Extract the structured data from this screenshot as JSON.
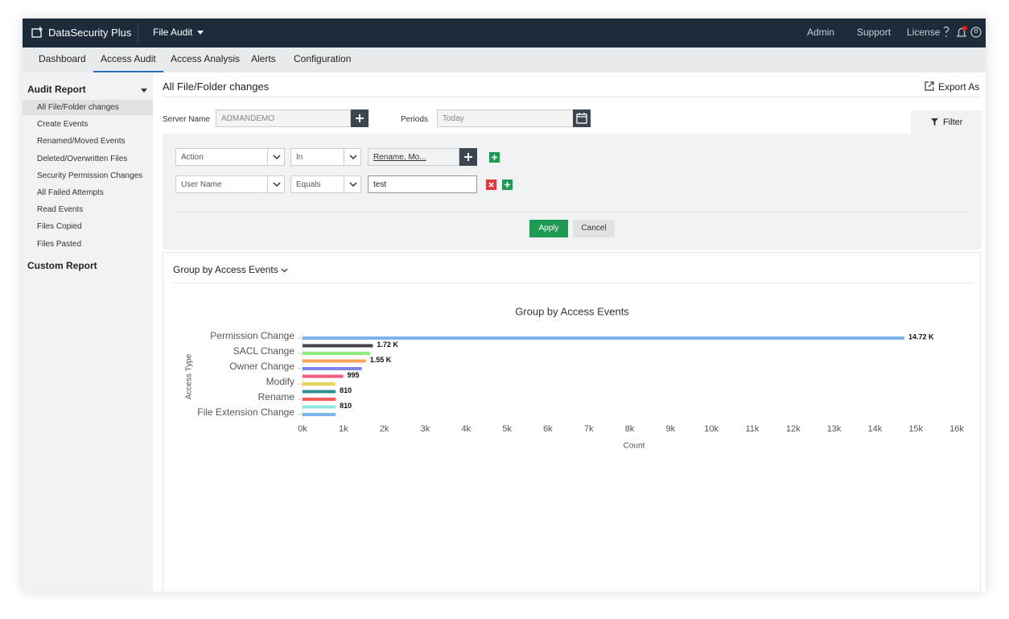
{
  "header": {
    "brand": "DataSecurity Plus",
    "module": "File Audit",
    "links": [
      "Admin",
      "Support",
      "License"
    ]
  },
  "tabs": [
    "Dashboard",
    "Access Audit",
    "Access Analysis",
    "Alerts",
    "Configuration"
  ],
  "sidebar": {
    "section": "Audit Report",
    "items": [
      "All File/Folder changes",
      "Create Events",
      "Renamed/Moved Events",
      "Deleted/Overwritten Files",
      "Security Permission Changes",
      "All Failed Attempts",
      "Read Events",
      "Files Copied",
      "Files Pasted"
    ],
    "custom": "Custom Report"
  },
  "page": {
    "title": "All File/Folder changes",
    "export": "Export As"
  },
  "form": {
    "server_label": "Server Name",
    "server": "ADMANDEMO",
    "periods_label": "Periods",
    "period": "Today",
    "filter": "Filter",
    "rows": [
      [
        "Action",
        "In",
        "Rename, Mo..."
      ],
      [
        "User Name",
        "Equals",
        "test"
      ]
    ],
    "apply": "Apply",
    "cancel": "Cancel"
  },
  "group_by": "Group by Access Events",
  "chart_data": {
    "type": "hbar",
    "title": "Group by Access Events",
    "x_label": "Count",
    "y_label": "Access Type",
    "categories": [
      "Permission Change",
      null,
      "SACL Change",
      null,
      "Owner Change",
      null,
      "Modify",
      null,
      "Rename",
      null,
      "File Extension Change"
    ],
    "values": [
      14720,
      1720,
      1650,
      1550,
      1450,
      995,
      800,
      810,
      810,
      810,
      810
    ],
    "value_labels": [
      "14.72 K",
      "1.72 K",
      null,
      "1.55 K",
      null,
      "995",
      null,
      "810",
      null,
      "810",
      null
    ],
    "colors": [
      "#7cb5ec",
      "#434348",
      "#90ed7d",
      "#f7a35c",
      "#8085e9",
      "#f15c80",
      "#e4d354",
      "#2b908f",
      "#f45b5b",
      "#91e8e1",
      "#7cb5ec"
    ],
    "xlim": [
      0,
      16000
    ],
    "xticks": [
      {
        "value": 0,
        "label": "0k"
      },
      {
        "value": 1000,
        "label": "1k"
      },
      {
        "value": 2000,
        "label": "2k"
      },
      {
        "value": 3000,
        "label": "3k"
      },
      {
        "value": 4000,
        "label": "4k"
      },
      {
        "value": 5000,
        "label": "5k"
      },
      {
        "value": 6000,
        "label": "6k"
      },
      {
        "value": 7000,
        "label": "7k"
      },
      {
        "value": 8000,
        "label": "8k"
      },
      {
        "value": 9000,
        "label": "9k"
      },
      {
        "value": 10000,
        "label": "10k"
      },
      {
        "value": 11000,
        "label": "11k"
      },
      {
        "value": 12000,
        "label": "12k"
      },
      {
        "value": 13000,
        "label": "13k"
      },
      {
        "value": 14000,
        "label": "14k"
      },
      {
        "value": 15000,
        "label": "15k"
      },
      {
        "value": 16000,
        "label": "16k"
      }
    ],
    "grid": false
  }
}
